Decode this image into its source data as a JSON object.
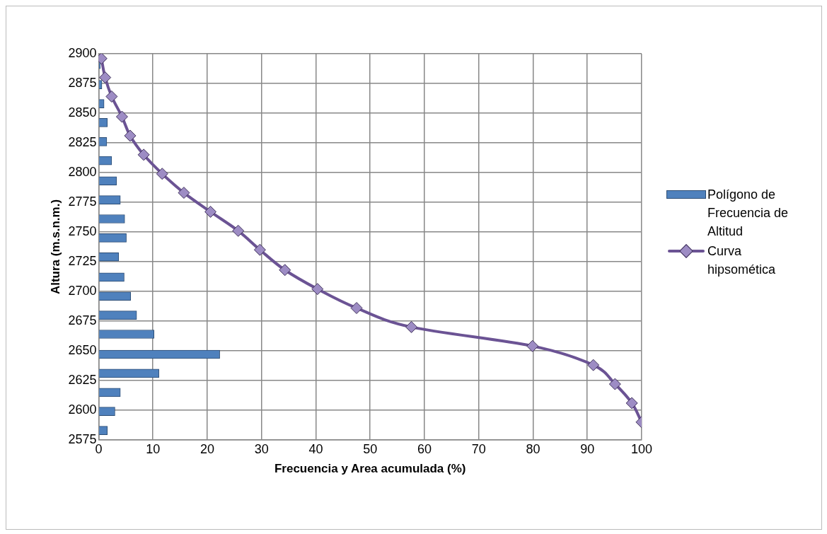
{
  "chart_data": {
    "type": "bar",
    "orientation": "horizontal",
    "xlabel": "Frecuencia y Area acumulada (%)",
    "ylabel": "Altura (m.s.n.m.)",
    "xlim": [
      0,
      100
    ],
    "xticks": [
      0,
      10,
      20,
      30,
      40,
      50,
      60,
      70,
      80,
      90,
      100
    ],
    "ylim": [
      2575,
      2900
    ],
    "yticks": [
      2575,
      2600,
      2625,
      2650,
      2675,
      2700,
      2725,
      2750,
      2775,
      2800,
      2825,
      2850,
      2875,
      2900
    ],
    "grid": true,
    "legend": "right",
    "marker": "diamond",
    "series": [
      {
        "name": "Polígono de Frecuencia de Altitud",
        "color": "#4f81bd",
        "x": [
          2583,
          2599,
          2615,
          2631,
          2647,
          2664,
          2680,
          2696,
          2712,
          2729,
          2745,
          2761,
          2777,
          2793,
          2810,
          2826,
          2842,
          2858,
          2874,
          2891
        ],
        "values": [
          1.6,
          3.0,
          4.0,
          11.1,
          22.3,
          10.2,
          7.0,
          5.9,
          4.7,
          3.7,
          5.1,
          4.8,
          4.0,
          3.3,
          2.4,
          1.5,
          1.6,
          1.0,
          0.6,
          0.3
        ]
      },
      {
        "name": "Curva hipsomética",
        "type": "line",
        "color": "#6b5394",
        "x": [
          2590,
          2606,
          2622,
          2638,
          2654,
          2670,
          2686,
          2702,
          2718,
          2735,
          2751,
          2767,
          2783,
          2799,
          2815,
          2831,
          2847,
          2864,
          2880,
          2896
        ],
        "values": [
          100,
          98.2,
          95.1,
          91.1,
          79.9,
          57.6,
          47.5,
          40.3,
          34.3,
          29.7,
          25.7,
          20.6,
          15.7,
          11.7,
          8.3,
          5.8,
          4.3,
          2.4,
          1.2,
          0.5
        ]
      }
    ]
  }
}
